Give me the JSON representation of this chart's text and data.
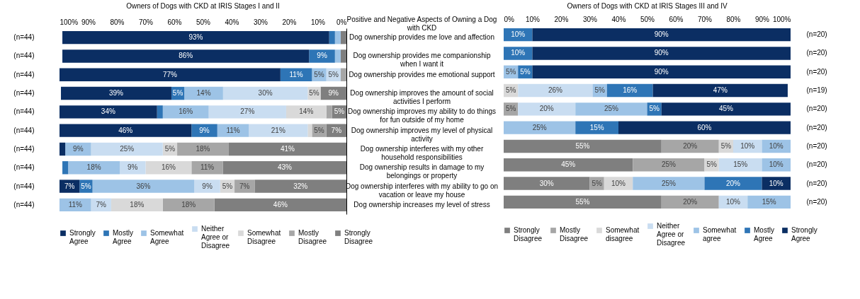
{
  "chart_data": [
    {
      "type": "bar",
      "orientation": "horizontal",
      "stacked": true,
      "title": "Owners of Dogs with CKD at IRIS Stages I and II",
      "ylabel": "Positive and Negative Aspects of Owning a Dog with CKD",
      "legend": "bottom",
      "categories": [
        "Dog ownership provides me love and affection",
        "Dog ownership provides me companionship when I want it",
        "Dog ownership provides me emotional support",
        "Dog ownership improves the amount of social activities I perform",
        "Dog ownership improves my ability to do things for fun outside of my home",
        "Dog ownership improves my level of physical activity",
        "Dog ownership interferes with my other household responsibilities",
        "Dog ownership results in damage to my belongings or property",
        "Dog ownership interferes with my ability to go on vacation or leave my house",
        "Dog ownership increases my level of stress"
      ],
      "y2_categories": [
        "(n=44)",
        "(n=44)",
        "(n=44)",
        "(n=44)",
        "(n=44)",
        "(n=44)",
        "(n=44)",
        "(n=44)",
        "(n=44)",
        "(n=44)"
      ],
      "xlim": [
        100,
        0
      ],
      "xticks": [
        {
          "value": 0,
          "label": "0%"
        },
        {
          "value": 10,
          "label": "10%"
        },
        {
          "value": 20,
          "label": "20%"
        },
        {
          "value": 30,
          "label": "30%"
        },
        {
          "value": 40,
          "label": "40%"
        },
        {
          "value": 50,
          "label": "50%"
        },
        {
          "value": 60,
          "label": "60%"
        },
        {
          "value": 70,
          "label": "70%"
        },
        {
          "value": 80,
          "label": "80%"
        },
        {
          "value": 90,
          "label": "90%"
        },
        {
          "value": 100,
          "label": "100%"
        }
      ],
      "series": [
        {
          "name": "Strongly Disagree",
          "color": "#7f7f7f",
          "values": [
            2,
            2,
            null,
            9,
            5,
            7,
            41,
            43,
            32,
            46
          ],
          "value_labels": [
            null,
            null,
            null,
            "9%",
            "5%",
            "7%",
            "41%",
            "43%",
            "32%",
            "46%"
          ]
        },
        {
          "name": "Mostly Disagree",
          "color": "#a6a6a6",
          "values": [
            null,
            null,
            2,
            null,
            2,
            5,
            18,
            11,
            7,
            18
          ],
          "value_labels": [
            null,
            null,
            null,
            null,
            null,
            "5%",
            "18%",
            "11%",
            "7%",
            "18%"
          ]
        },
        {
          "name": "Somewhat Disagree",
          "color": "#d9d9d9",
          "values": [
            null,
            null,
            null,
            4.5,
            14,
            1.5,
            5,
            16,
            5,
            18
          ],
          "value_labels": [
            null,
            null,
            null,
            "5%",
            "14%",
            null,
            "5%",
            "16%",
            "5%",
            "18%"
          ]
        },
        {
          "name": "Neither Agree or Disagree",
          "color": "#c9ddf1",
          "values": [
            null,
            null,
            5,
            29.5,
            27,
            20.5,
            25,
            9,
            9,
            7
          ],
          "value_labels": [
            null,
            null,
            "5%",
            "30%",
            "27%",
            "21%",
            "25%",
            "9%",
            "9%",
            "7%"
          ]
        },
        {
          "name": "Somewhat Agree",
          "color": "#9dc3e6",
          "values": [
            2,
            2,
            5,
            13.5,
            16,
            11,
            9,
            18,
            35.5,
            11
          ],
          "value_labels": [
            null,
            null,
            "5%",
            "14%",
            "16%",
            "11%",
            "9%",
            "18%",
            "36%",
            "11%"
          ]
        },
        {
          "name": "Mostly Agree",
          "color": "#2e75b6",
          "values": [
            2,
            9,
            11,
            4.5,
            2,
            9,
            null,
            2,
            4.5,
            null
          ],
          "value_labels": [
            null,
            "9%",
            "11%",
            "5%",
            null,
            "9%",
            null,
            null,
            "5%",
            null
          ]
        },
        {
          "name": "Strongly Agree",
          "color": "#0b2e63",
          "values": [
            93,
            86,
            77,
            38.5,
            34,
            46,
            2,
            null,
            7,
            null
          ],
          "value_labels": [
            "93%",
            "86%",
            "77%",
            "39%",
            "34%",
            "46%",
            null,
            null,
            "7%",
            null
          ]
        }
      ]
    },
    {
      "type": "bar",
      "orientation": "horizontal",
      "stacked": true,
      "title": "Owners of Dogs with CKD at IRIS Stages III and IV",
      "legend": "bottom",
      "categories": [
        "(n=20)",
        "(n=20)",
        "(n=20)",
        "(n=19)",
        "(n=20)",
        "(n=20)",
        "(n=20)",
        "(n=20)",
        "(n=20)",
        "(n=20)"
      ],
      "xlim": [
        0,
        100
      ],
      "xticks": [
        {
          "value": 0,
          "label": "0%"
        },
        {
          "value": 10,
          "label": "10%"
        },
        {
          "value": 20,
          "label": "20%"
        },
        {
          "value": 30,
          "label": "30%"
        },
        {
          "value": 40,
          "label": "40%"
        },
        {
          "value": 50,
          "label": "50%"
        },
        {
          "value": 60,
          "label": "60%"
        },
        {
          "value": 70,
          "label": "70%"
        },
        {
          "value": 80,
          "label": "80%"
        },
        {
          "value": 90,
          "label": "90%"
        },
        {
          "value": 100,
          "label": "100%"
        }
      ],
      "series": [
        {
          "name": "Strongly Disagree",
          "color": "#7f7f7f",
          "values": [
            null,
            null,
            null,
            null,
            null,
            null,
            55,
            45,
            30,
            55
          ],
          "value_labels": [
            null,
            null,
            null,
            null,
            null,
            null,
            "55%",
            "45%",
            "30%",
            "55%"
          ]
        },
        {
          "name": "Mostly Disagree",
          "color": "#a6a6a6",
          "values": [
            null,
            null,
            null,
            null,
            5,
            null,
            20,
            25,
            5,
            20
          ],
          "value_labels": [
            null,
            null,
            null,
            null,
            "5%",
            null,
            "20%",
            "25%",
            "5%",
            "20%"
          ]
        },
        {
          "name": "Somewhat disagree",
          "color": "#d9d9d9",
          "values": [
            null,
            null,
            null,
            5,
            null,
            null,
            5,
            5,
            10,
            null
          ],
          "value_labels": [
            null,
            null,
            null,
            "5%",
            null,
            null,
            "5%",
            "5%",
            "10%",
            null
          ]
        },
        {
          "name": "Neither Agree or Disagree",
          "color": "#c9ddf1",
          "values": [
            null,
            null,
            null,
            26,
            20,
            null,
            10,
            15,
            null,
            10
          ],
          "value_labels": [
            null,
            null,
            null,
            "26%",
            "20%",
            null,
            "10%",
            "15%",
            null,
            "10%"
          ]
        },
        {
          "name": "Somewhat agree",
          "color": "#9dc3e6",
          "values": [
            null,
            null,
            5,
            5,
            25,
            25,
            10,
            10,
            25,
            15
          ],
          "value_labels": [
            null,
            null,
            "5%",
            "5%",
            "25%",
            "25%",
            "10%",
            "10%",
            "25%",
            "15%"
          ]
        },
        {
          "name": "Mostly Agree",
          "color": "#2e75b6",
          "values": [
            10,
            10,
            5,
            16,
            5,
            15,
            null,
            null,
            20,
            null
          ],
          "value_labels": [
            "10%",
            "10%",
            "5%",
            "16%",
            "5%",
            "15%",
            null,
            null,
            "20%",
            null
          ]
        },
        {
          "name": "Strongly Agree",
          "color": "#0b2e63",
          "values": [
            90,
            90,
            90,
            47,
            45,
            60,
            null,
            null,
            10,
            null
          ],
          "value_labels": [
            "90%",
            "90%",
            "90%",
            "47%",
            "45%",
            "60%",
            null,
            null,
            "10%",
            null
          ]
        }
      ]
    }
  ]
}
